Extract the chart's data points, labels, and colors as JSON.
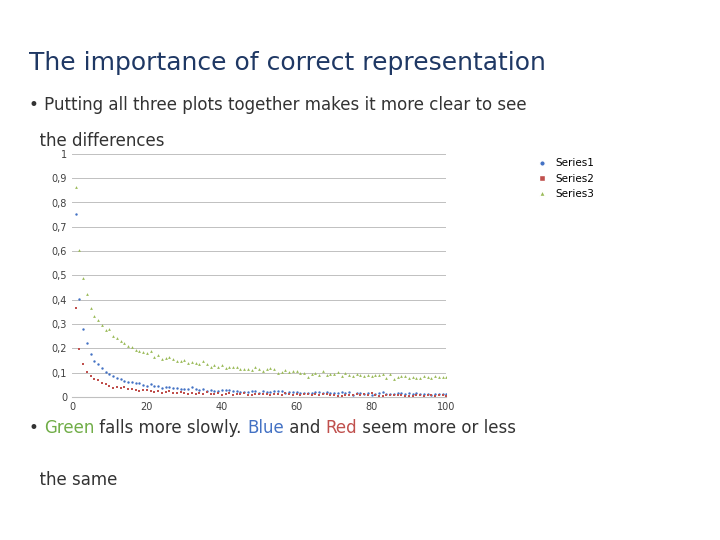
{
  "title": "The importance of correct representation",
  "title_color": "#1F3864",
  "title_fontsize": 18,
  "header_color": "#4472C4",
  "bullet1": "Putting all three plots together makes it more clear to see\n  the differences",
  "series1_color": "#4472C4",
  "series2_color": "#C0504D",
  "series3_color": "#9BBB59",
  "series1_label": "Series1",
  "series2_label": "Series2",
  "series3_label": "Series3",
  "xlim": [
    0,
    100
  ],
  "ylim": [
    0,
    1.0
  ],
  "ytick_labels": [
    "0",
    "0,1",
    "0,2",
    "0,3",
    "0,4",
    "0,5",
    "0,6",
    "0,7",
    "0,8",
    "0,9",
    "1"
  ],
  "ytick_vals": [
    0,
    0.1,
    0.2,
    0.3,
    0.4,
    0.5,
    0.6,
    0.7,
    0.8,
    0.9,
    1.0
  ],
  "xticks": [
    0,
    20,
    40,
    60,
    80,
    100
  ],
  "bg_color": "#FFFFFF",
  "grid_color": "#C0C0C0",
  "font_color": "#404040",
  "text_fontsize": 12,
  "legend_fontsize": 7.5,
  "green_color": "#70AD47",
  "blue_color": "#4472C4",
  "red_color": "#C0504D",
  "dark_color": "#333333"
}
